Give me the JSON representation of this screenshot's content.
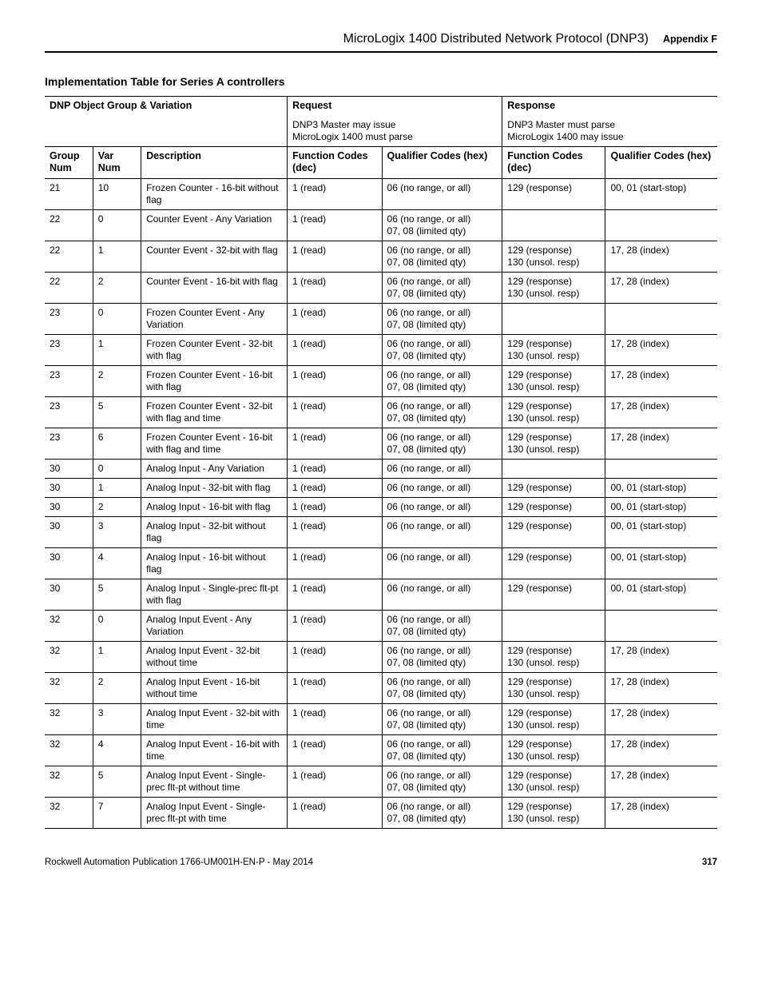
{
  "header": {
    "doc_title": "MicroLogix 1400 Distributed Network Protocol (DNP3)",
    "appendix": "Appendix F"
  },
  "section_title": "Implementation Table for Series A controllers",
  "table": {
    "top_headers": {
      "object_group": "DNP Object Group & Variation",
      "request": "Request",
      "request_sub": "DNP3 Master may issue\nMicroLogix 1400 must parse",
      "response": "Response",
      "response_sub": "DNP3 Master must parse\nMicroLogix 1400 may issue"
    },
    "col_headers": {
      "group": "Group Num",
      "var": "Var Num",
      "desc": "Description",
      "fc_req": "Function Codes (dec)",
      "qc_req": "Qualifier Codes (hex)",
      "fc_res": "Function Codes (dec)",
      "qc_res": "Qualifier Codes (hex)"
    },
    "rows": [
      {
        "group": "21",
        "var": "10",
        "desc": "Frozen Counter - 16-bit without flag",
        "fc_req": "1 (read)",
        "qc_req": "06 (no range, or all)",
        "fc_res": "129 (response)",
        "qc_res": "00, 01 (start-stop)"
      },
      {
        "group": "22",
        "var": "0",
        "desc": "Counter Event - Any Variation",
        "fc_req": "1 (read)",
        "qc_req": "06 (no range, or all)\n07, 08 (limited qty)",
        "fc_res": "",
        "qc_res": ""
      },
      {
        "group": "22",
        "var": "1",
        "desc": "Counter Event - 32-bit with flag",
        "fc_req": "1 (read)",
        "qc_req": "06 (no range, or all)\n07, 08 (limited qty)",
        "fc_res": "129 (response)\n130 (unsol. resp)",
        "qc_res": "17, 28 (index)"
      },
      {
        "group": "22",
        "var": "2",
        "desc": "Counter Event - 16-bit with flag",
        "fc_req": "1 (read)",
        "qc_req": "06 (no range, or all)\n07, 08 (limited qty)",
        "fc_res": "129 (response)\n130 (unsol. resp)",
        "qc_res": "17, 28 (index)"
      },
      {
        "group": "23",
        "var": "0",
        "desc": "Frozen Counter Event - Any Variation",
        "fc_req": "1 (read)",
        "qc_req": "06 (no range, or all)\n07, 08 (limited qty)",
        "fc_res": "",
        "qc_res": ""
      },
      {
        "group": "23",
        "var": "1",
        "desc": "Frozen Counter Event - 32-bit with flag",
        "fc_req": "1 (read)",
        "qc_req": "06 (no range, or all)\n07, 08 (limited qty)",
        "fc_res": "129 (response)\n130 (unsol. resp)",
        "qc_res": "17, 28 (index)"
      },
      {
        "group": "23",
        "var": "2",
        "desc": "Frozen Counter Event - 16-bit with flag",
        "fc_req": "1 (read)",
        "qc_req": "06 (no range, or all)\n07, 08 (limited qty)",
        "fc_res": "129 (response)\n130 (unsol. resp)",
        "qc_res": "17, 28 (index)"
      },
      {
        "group": "23",
        "var": "5",
        "desc": "Frozen Counter Event - 32-bit with flag and time",
        "fc_req": "1 (read)",
        "qc_req": "06 (no range, or all)\n07, 08 (limited qty)",
        "fc_res": "129 (response)\n130 (unsol. resp)",
        "qc_res": "17, 28 (index)"
      },
      {
        "group": "23",
        "var": "6",
        "desc": "Frozen Counter Event - 16-bit with flag and time",
        "fc_req": "1 (read)",
        "qc_req": "06 (no range, or all)\n07, 08 (limited qty)",
        "fc_res": "129 (response)\n130 (unsol. resp)",
        "qc_res": "17, 28 (index)"
      },
      {
        "group": "30",
        "var": "0",
        "desc": "Analog Input - Any Variation",
        "fc_req": "1 (read)",
        "qc_req": "06 (no range, or all)",
        "fc_res": "",
        "qc_res": ""
      },
      {
        "group": "30",
        "var": "1",
        "desc": "Analog Input - 32-bit with flag",
        "fc_req": "1 (read)",
        "qc_req": "06 (no range, or all)",
        "fc_res": "129 (response)",
        "qc_res": "00, 01 (start-stop)"
      },
      {
        "group": "30",
        "var": "2",
        "desc": "Analog Input - 16-bit with flag",
        "fc_req": "1 (read)",
        "qc_req": "06 (no range, or all)",
        "fc_res": "129 (response)",
        "qc_res": "00, 01 (start-stop)"
      },
      {
        "group": "30",
        "var": "3",
        "desc": "Analog Input - 32-bit without flag",
        "fc_req": "1 (read)",
        "qc_req": "06 (no range, or all)",
        "fc_res": "129 (response)",
        "qc_res": "00, 01 (start-stop)"
      },
      {
        "group": "30",
        "var": "4",
        "desc": "Analog Input - 16-bit without flag",
        "fc_req": "1 (read)",
        "qc_req": "06 (no range, or all)",
        "fc_res": "129 (response)",
        "qc_res": "00, 01 (start-stop)"
      },
      {
        "group": "30",
        "var": "5",
        "desc": "Analog Input - Single-prec flt-pt with flag",
        "fc_req": "1 (read)",
        "qc_req": "06 (no range, or all)",
        "fc_res": "129 (response)",
        "qc_res": "00, 01 (start-stop)"
      },
      {
        "group": "32",
        "var": "0",
        "desc": "Analog Input Event - Any Variation",
        "fc_req": "1 (read)",
        "qc_req": "06 (no range, or all)\n07, 08 (limited qty)",
        "fc_res": "",
        "qc_res": ""
      },
      {
        "group": "32",
        "var": "1",
        "desc": "Analog Input Event - 32-bit without time",
        "fc_req": "1 (read)",
        "qc_req": "06 (no range, or all)\n07, 08 (limited qty)",
        "fc_res": "129 (response)\n130 (unsol. resp)",
        "qc_res": "17, 28 (index)"
      },
      {
        "group": "32",
        "var": "2",
        "desc": "Analog Input Event - 16-bit without time",
        "fc_req": "1 (read)",
        "qc_req": "06 (no range, or all)\n07, 08 (limited qty)",
        "fc_res": "129 (response)\n130 (unsol. resp)",
        "qc_res": "17, 28 (index)"
      },
      {
        "group": "32",
        "var": "3",
        "desc": "Analog Input Event - 32-bit with time",
        "fc_req": "1 (read)",
        "qc_req": "06 (no range, or all)\n07, 08 (limited qty)",
        "fc_res": "129 (response)\n130 (unsol. resp)",
        "qc_res": "17, 28 (index)"
      },
      {
        "group": "32",
        "var": "4",
        "desc": "Analog Input Event - 16-bit with time",
        "fc_req": "1 (read)",
        "qc_req": "06 (no range, or all)\n07, 08 (limited qty)",
        "fc_res": "129 (response)\n130 (unsol. resp)",
        "qc_res": "17, 28 (index)"
      },
      {
        "group": "32",
        "var": "5",
        "desc": "Analog Input Event - Single-prec flt-pt without time",
        "fc_req": "1 (read)",
        "qc_req": "06 (no range, or all)\n07, 08 (limited qty)",
        "fc_res": "129 (response)\n130 (unsol. resp)",
        "qc_res": "17, 28 (index)"
      },
      {
        "group": "32",
        "var": "7",
        "desc": "Analog Input Event - Single-prec flt-pt with time",
        "fc_req": "1 (read)",
        "qc_req": "06 (no range, or all)\n07, 08 (limited qty)",
        "fc_res": "129 (response)\n130 (unsol. resp)",
        "qc_res": "17, 28 (index)"
      }
    ]
  },
  "footer": {
    "publication": "Rockwell Automation Publication 1766-UM001H-EN-P - May 2014",
    "page": "317"
  }
}
